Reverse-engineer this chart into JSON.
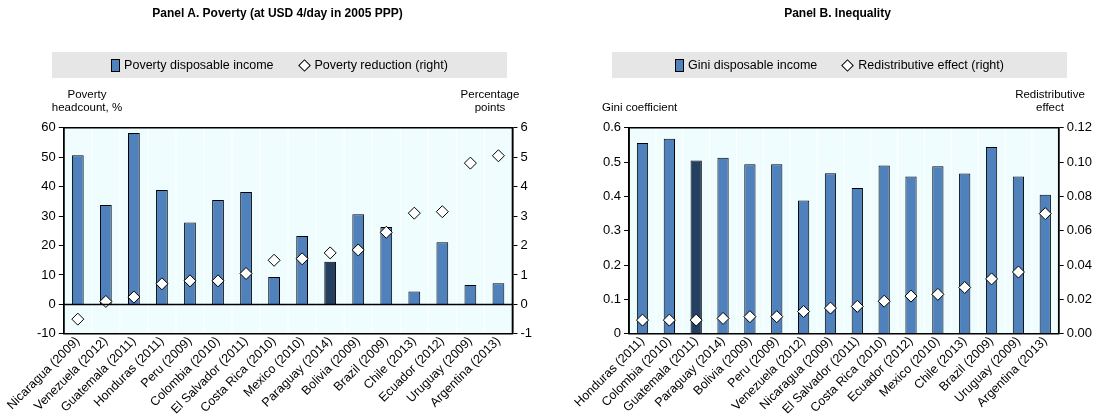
{
  "chart_data": [
    {
      "type": "bar",
      "title": "Panel A. Poverty (at USD 4/day in 2005 PPP)",
      "ylabel": "Poverty headcount, %",
      "y2label": "Percentage points",
      "legend": "top",
      "marker": "diamond",
      "grid": false,
      "categories": [
        "Nicaragua (2009)",
        "Venezuela (2012)",
        "Guatemala (2011)",
        "Honduras (2011)",
        "Peru (2009)",
        "Colombia (2010)",
        "El Salvador (2011)",
        "Costa Rica (2010)",
        "Mexico (2010)",
        "Paraguay (2014)",
        "Bolivia (2009)",
        "Brazil (2009)",
        "Chile (2013)",
        "Ecuador (2012)",
        "Uruguay (2009)",
        "Argentina (2013)"
      ],
      "series": [
        {
          "name": "Poverty disposable income",
          "color": "#4f81bd",
          "colors": [
            "#4f81bd",
            "#4f81bd",
            "#4f81bd",
            "#4f81bd",
            "#4f81bd",
            "#4f81bd",
            "#4f81bd",
            "#4f81bd",
            "#4f81bd",
            "#243f60",
            "#4f81bd",
            "#4f81bd",
            "#4f81bd",
            "#4f81bd",
            "#4f81bd",
            "#4f81bd"
          ],
          "values": [
            50.7,
            33.8,
            58.2,
            38.9,
            27.8,
            35.5,
            38.2,
            9.3,
            23.2,
            14.5,
            30.6,
            26.3,
            4.4,
            21.1,
            6.6,
            7.2
          ]
        },
        {
          "name": "Poverty reduction (right)",
          "type": "scatter",
          "axis": "y2",
          "color": "#ffffff",
          "values": [
            -0.5,
            0.1,
            0.25,
            0.7,
            0.8,
            0.8,
            1.05,
            1.5,
            1.55,
            1.75,
            1.85,
            2.45,
            3.1,
            3.15,
            4.8,
            5.05
          ]
        }
      ],
      "ylim": [
        -10,
        60
      ],
      "yticks": [
        -10,
        0,
        10,
        20,
        30,
        40,
        50,
        60
      ],
      "y2lim": [
        -1,
        6
      ],
      "y2ticks": [
        -1,
        0,
        1,
        2,
        3,
        4,
        5,
        6
      ]
    },
    {
      "type": "bar",
      "title": "Panel B. Inequality",
      "ylabel": "Gini coefficient",
      "y2label": "Redistributive effect",
      "legend": "top",
      "marker": "diamond",
      "grid": false,
      "categories": [
        "Honduras (2011)",
        "Colombia (2010)",
        "Guatemala (2011)",
        "Paraguay (2014)",
        "Bolivia (2009)",
        "Peru (2009)",
        "Venezuela (2012)",
        "Nicaragua (2009)",
        "El Salvador (2011)",
        "Costa Rica (2010)",
        "Ecuador (2012)",
        "Mexico (2010)",
        "Chile (2013)",
        "Brazil (2009)",
        "Uruguay (2009)",
        "Argentina (2013)"
      ],
      "series": [
        {
          "name": "Gini disposable income",
          "color": "#4f81bd",
          "colors": [
            "#4f81bd",
            "#4f81bd",
            "#243f60",
            "#4f81bd",
            "#4f81bd",
            "#4f81bd",
            "#4f81bd",
            "#4f81bd",
            "#4f81bd",
            "#4f81bd",
            "#4f81bd",
            "#4f81bd",
            "#4f81bd",
            "#4f81bd",
            "#4f81bd",
            "#4f81bd"
          ],
          "values": [
            0.556,
            0.568,
            0.505,
            0.513,
            0.494,
            0.494,
            0.388,
            0.468,
            0.425,
            0.49,
            0.458,
            0.488,
            0.467,
            0.544,
            0.458,
            0.405
          ]
        },
        {
          "name": "Redistributive effect (right)",
          "type": "scatter",
          "axis": "y2",
          "color": "#ffffff",
          "values": [
            0.008,
            0.008,
            0.008,
            0.009,
            0.01,
            0.01,
            0.013,
            0.015,
            0.016,
            0.019,
            0.022,
            0.023,
            0.027,
            0.032,
            0.036,
            0.07
          ]
        }
      ],
      "ylim": [
        0,
        0.6
      ],
      "yticks": [
        0,
        0.1,
        0.2,
        0.3,
        0.4,
        0.5,
        0.6
      ],
      "y2lim": [
        0,
        0.12
      ],
      "y2ticks": [
        {
          "value": 0,
          "label": "0.00"
        },
        {
          "value": 0.02,
          "label": "0.02"
        },
        {
          "value": 0.04,
          "label": "0.04"
        },
        {
          "value": 0.06,
          "label": "0.06"
        },
        {
          "value": 0.08,
          "label": "0.08"
        },
        {
          "value": 0.1,
          "label": "0.10"
        },
        {
          "value": 0.12,
          "label": "0.12"
        }
      ]
    }
  ]
}
